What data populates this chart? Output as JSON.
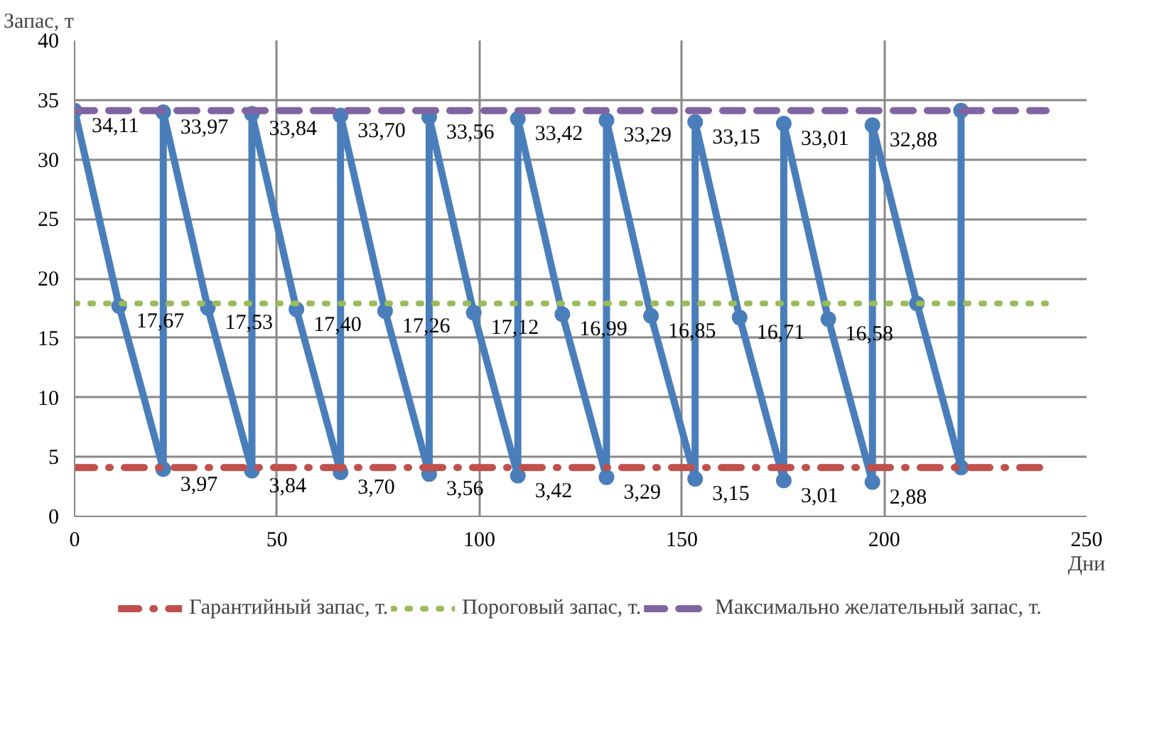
{
  "chart_data": {
    "type": "line",
    "xlabel": "Дни",
    "ylabel": "Запас, т",
    "xlim": [
      0,
      250
    ],
    "ylim": [
      0,
      40
    ],
    "xticks": [
      0,
      50,
      100,
      150,
      200,
      250
    ],
    "yticks": [
      0,
      5,
      10,
      15,
      20,
      25,
      30,
      35,
      40
    ],
    "grid": true,
    "legend": "bottom",
    "series": [
      {
        "color": "#4a7ebb",
        "marker": "circle",
        "line_style": "solid",
        "x": [
          0,
          11,
          21.9,
          21.9,
          32.9,
          43.8,
          43.8,
          54.8,
          65.7,
          65.7,
          76.7,
          87.6,
          87.6,
          98.6,
          109.5,
          109.5,
          120.5,
          131.4,
          131.4,
          142.4,
          153.3,
          153.3,
          164.3,
          175.2,
          175.2,
          186.2,
          197.1,
          197.1,
          208.1,
          219,
          219
        ],
        "values": [
          34.11,
          17.67,
          3.97,
          33.97,
          17.53,
          3.84,
          33.84,
          17.4,
          3.7,
          33.7,
          17.26,
          3.56,
          33.56,
          17.12,
          3.42,
          33.42,
          16.99,
          3.29,
          33.29,
          16.85,
          3.15,
          33.15,
          16.71,
          3.01,
          33.01,
          16.58,
          2.88,
          32.88,
          17.9,
          4.1,
          34.1
        ],
        "value_labels": [
          "34,11",
          "17,67",
          "3,97",
          "33,97",
          "17,53",
          "3,84",
          "33,84",
          "17,40",
          "3,70",
          "33,70",
          "17,26",
          "3,56",
          "33,56",
          "17,12",
          "3,42",
          "33,42",
          "16,99",
          "3,29",
          "33,29",
          "16,85",
          "3,15",
          "33,15",
          "16,71",
          "3,01",
          "33,01",
          "16,58",
          "2,88",
          "32,88",
          null,
          null,
          null
        ]
      },
      {
        "name": "Гарантийный запас, т.",
        "color": "#c0504d",
        "marker": "none",
        "line_style": "dashdot",
        "x": [
          0,
          240
        ],
        "values": [
          4.1,
          4.1
        ]
      },
      {
        "name": "Пороговый запас, т.",
        "color": "#9bbb59",
        "marker": "none",
        "line_style": "dotted",
        "x": [
          0,
          240
        ],
        "values": [
          17.9,
          17.9
        ]
      },
      {
        "name": "Максимально желательный запас, т.",
        "color": "#8064a2",
        "marker": "none",
        "line_style": "dashed",
        "x": [
          0,
          240
        ],
        "values": [
          34.1,
          34.1
        ]
      }
    ]
  }
}
